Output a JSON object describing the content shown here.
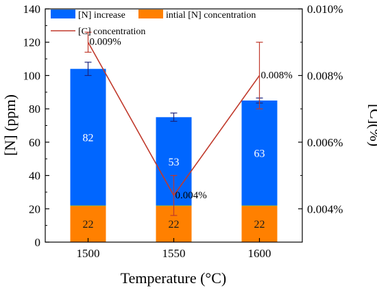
{
  "chart_data": {
    "type": "bar",
    "stacked": true,
    "categories": [
      "1500",
      "1550",
      "1600"
    ],
    "xlabel": "Temperature (°C)",
    "ylabel": "[N] (ppm)",
    "ylabel_right": "[C](%)",
    "ylim": [
      0,
      140
    ],
    "yticks": [
      "0",
      "20",
      "40",
      "60",
      "80",
      "100",
      "120",
      "140"
    ],
    "ylim_right": [
      0.003,
      0.01
    ],
    "yticks_right": [
      {
        "value": 0.004,
        "label": "0.004%"
      },
      {
        "value": 0.006,
        "label": "0.006%"
      },
      {
        "value": 0.008,
        "label": "0.008%"
      },
      {
        "value": 0.01,
        "label": "0.010%"
      }
    ],
    "series": [
      {
        "name": "intial [N] concentration",
        "color": "#ff8000",
        "values": [
          22,
          22,
          22
        ],
        "labels": [
          "22",
          "22",
          "22"
        ]
      },
      {
        "name": "[N] increase",
        "color": "#0066ff",
        "values": [
          82,
          53,
          63
        ],
        "labels": [
          "82",
          "53",
          "63"
        ]
      }
    ],
    "bar_error": [
      4,
      2.5,
      1.5
    ],
    "line_series": {
      "name": "[C] concentration",
      "color": "#c0392b",
      "values": [
        0.009,
        0.0044,
        0.008
      ],
      "labels": [
        "0.009%",
        "0.004%",
        "0.008%"
      ],
      "error": [
        0.0003,
        0.0006,
        0.001
      ]
    },
    "legend": {
      "position": "top",
      "entries": [
        "[N] increase",
        "intial [N] concentration",
        "[C] concentration"
      ]
    }
  }
}
